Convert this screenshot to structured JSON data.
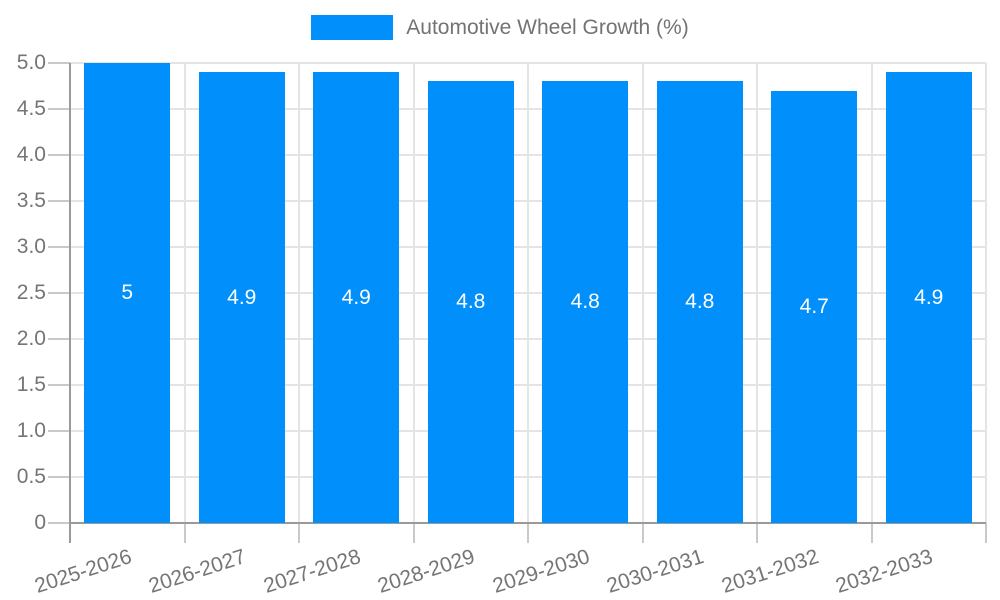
{
  "legend": {
    "label": "Automotive Wheel Growth (%)"
  },
  "chart_data": {
    "type": "bar",
    "title": "Automotive Wheel Growth (%)",
    "categories": [
      "2025-2026",
      "2026-2027",
      "2027-2028",
      "2028-2029",
      "2029-2030",
      "2030-2031",
      "2031-2032",
      "2032-2033"
    ],
    "series": [
      {
        "name": "Automotive Wheel Growth (%)",
        "values": [
          5,
          4.9,
          4.9,
          4.8,
          4.8,
          4.8,
          4.7,
          4.9
        ]
      }
    ],
    "value_labels": [
      "5",
      "4.9",
      "4.9",
      "4.8",
      "4.8",
      "4.8",
      "4.7",
      "4.9"
    ],
    "xlabel": "",
    "ylabel": "",
    "ylim": [
      0,
      5
    ],
    "ytick_step": 0.5,
    "ytick_labels": [
      "0",
      "0.5",
      "1.0",
      "1.5",
      "2.0",
      "2.5",
      "3.0",
      "3.5",
      "4.0",
      "4.5",
      "5.0"
    ],
    "grid": true,
    "legend_position": "top-center",
    "x_label_rotation_deg": -18,
    "colors": {
      "bar": "#008FFB",
      "grid": "#e4e4e4",
      "tick": "#c9c9c9",
      "axis": "#9a9a9a",
      "axis_text": "#757575",
      "bar_label_text": "#ffffff",
      "legend_text": "#737373"
    }
  }
}
